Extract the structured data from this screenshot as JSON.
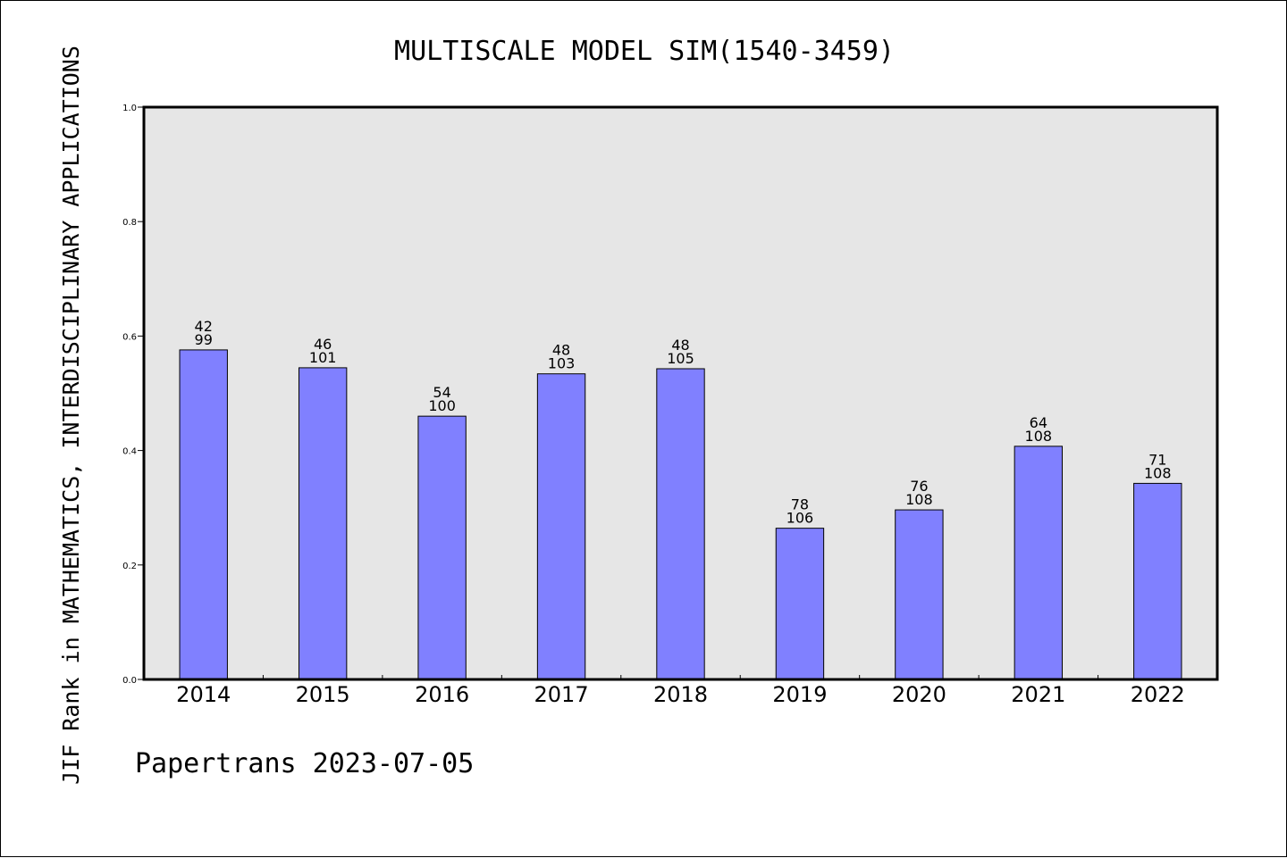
{
  "chart_data": {
    "type": "bar",
    "title": "MULTISCALE MODEL SIM(1540-3459)",
    "xlabel": "",
    "ylabel": "JIF Rank in MATHEMATICS, INTERDISCIPLINARY APPLICATIONS",
    "categories": [
      "2014",
      "2015",
      "2016",
      "2017",
      "2018",
      "2019",
      "2020",
      "2021",
      "2022"
    ],
    "values": [
      0.5758,
      0.5446,
      0.46,
      0.534,
      0.5429,
      0.2642,
      0.2963,
      0.4074,
      0.3426
    ],
    "rank": [
      "42",
      "46",
      "54",
      "48",
      "48",
      "78",
      "76",
      "64",
      "71"
    ],
    "total": [
      "99",
      "101",
      "100",
      "103",
      "105",
      "106",
      "108",
      "108",
      "108"
    ],
    "ylim": [
      0.0,
      1.0
    ],
    "yticks": [
      "0.0",
      "0.2",
      "0.4",
      "0.6",
      "0.8",
      "1.0"
    ],
    "grid": false,
    "legend": "none",
    "bar_color": "#8080ff",
    "plot_background": "#e6e6e6",
    "footer": "Papertrans 2023-07-05"
  }
}
